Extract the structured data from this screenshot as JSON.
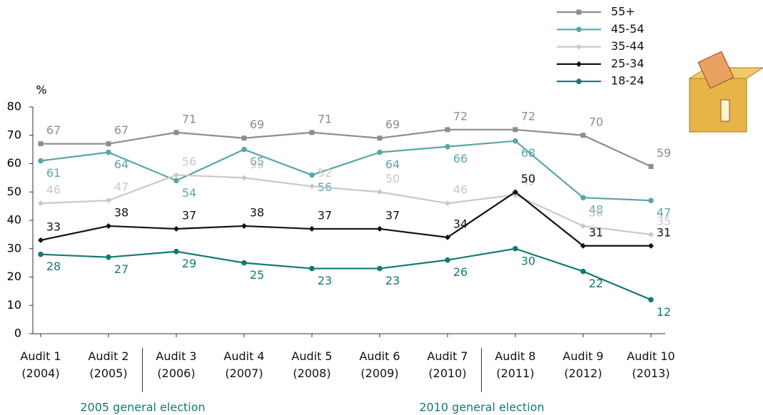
{
  "chart_data": {
    "type": "line",
    "y_axis_label": "%",
    "annotations": [
      "2005 general election",
      "2010 general election"
    ],
    "categories": [
      "Audit 1\n(2004)",
      "Audit 2\n(2005)",
      "Audit 3\n(2006)",
      "Audit 4\n(2007)",
      "Audit 5\n(2008)",
      "Audit 6\n(2009)",
      "Audit 7\n(2010)",
      "Audit 8\n(2011)",
      "Audit 9\n(2012)",
      "Audit 10\n(2013)"
    ],
    "series": [
      {
        "name": "55+",
        "color": "#8d8d8f",
        "marker": "square",
        "values": [
          67,
          67,
          71,
          69,
          71,
          69,
          72,
          72,
          70,
          59
        ]
      },
      {
        "name": "45-54",
        "color": "#5aa6a6",
        "marker": "circle",
        "values": [
          61,
          64,
          54,
          65,
          56,
          64,
          66,
          68,
          48,
          47
        ]
      },
      {
        "name": "35-44",
        "color": "#c9c9c9",
        "marker": "diamond",
        "values": [
          46,
          47,
          56,
          55,
          52,
          50,
          46,
          49,
          38,
          35
        ]
      },
      {
        "name": "25-34",
        "color": "#111111",
        "marker": "diamond",
        "values": [
          33,
          38,
          37,
          38,
          37,
          37,
          34,
          50,
          31,
          31
        ]
      },
      {
        "name": "18-24",
        "color": "#137a72",
        "marker": "circle",
        "values": [
          28,
          27,
          29,
          25,
          23,
          23,
          26,
          30,
          22,
          12
        ]
      }
    ],
    "ylim": [
      0,
      80
    ],
    "yticks": [
      0,
      10,
      20,
      30,
      40,
      50,
      60,
      70,
      80
    ],
    "grid": false,
    "legend": "top-right"
  }
}
